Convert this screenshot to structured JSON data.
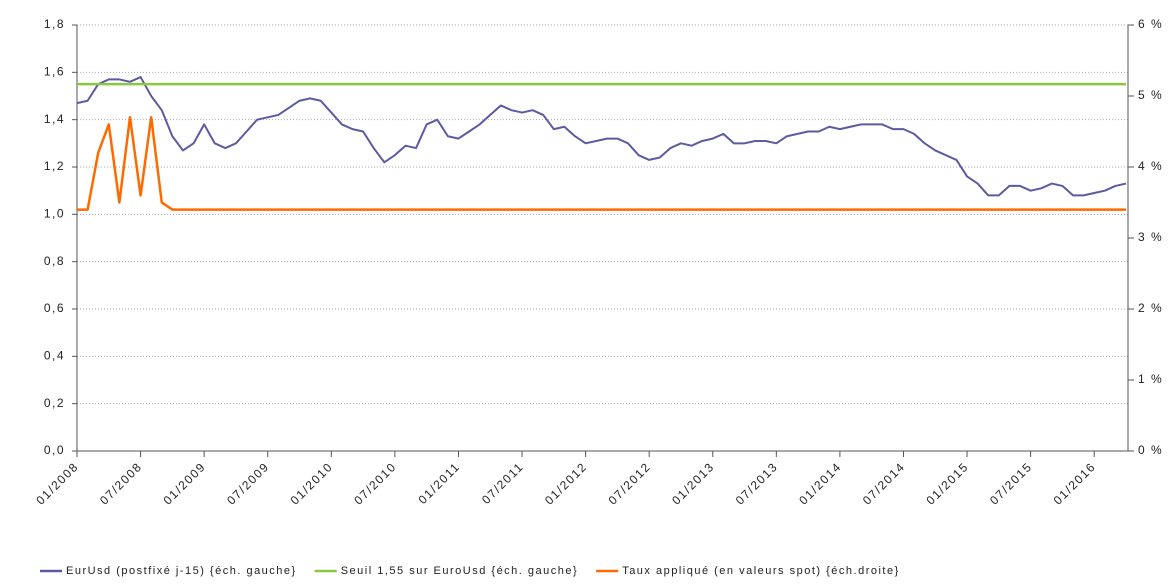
{
  "chart_data": {
    "type": "line",
    "x": [
      "01/2008",
      "02/2008",
      "03/2008",
      "04/2008",
      "05/2008",
      "06/2008",
      "07/2008",
      "08/2008",
      "09/2008",
      "10/2008",
      "11/2008",
      "12/2008",
      "01/2009",
      "02/2009",
      "03/2009",
      "04/2009",
      "05/2009",
      "06/2009",
      "07/2009",
      "08/2009",
      "09/2009",
      "10/2009",
      "11/2009",
      "12/2009",
      "01/2010",
      "02/2010",
      "03/2010",
      "04/2010",
      "05/2010",
      "06/2010",
      "07/2010",
      "08/2010",
      "09/2010",
      "10/2010",
      "11/2010",
      "12/2010",
      "01/2011",
      "02/2011",
      "03/2011",
      "04/2011",
      "05/2011",
      "06/2011",
      "07/2011",
      "08/2011",
      "09/2011",
      "10/2011",
      "11/2011",
      "12/2011",
      "01/2012",
      "02/2012",
      "03/2012",
      "04/2012",
      "05/2012",
      "06/2012",
      "07/2012",
      "08/2012",
      "09/2012",
      "10/2012",
      "11/2012",
      "12/2012",
      "01/2013",
      "02/2013",
      "03/2013",
      "04/2013",
      "05/2013",
      "06/2013",
      "07/2013",
      "08/2013",
      "09/2013",
      "10/2013",
      "11/2013",
      "12/2013",
      "01/2014",
      "02/2014",
      "03/2014",
      "04/2014",
      "05/2014",
      "06/2014",
      "07/2014",
      "08/2014",
      "09/2014",
      "10/2014",
      "11/2014",
      "12/2014",
      "01/2015",
      "02/2015",
      "03/2015",
      "04/2015",
      "05/2015",
      "06/2015",
      "07/2015",
      "08/2015",
      "09/2015",
      "10/2015",
      "11/2015",
      "12/2015",
      "01/2016",
      "02/2016",
      "03/2016",
      "04/2016"
    ],
    "xticks": [
      "01/2008",
      "07/2008",
      "01/2009",
      "07/2009",
      "01/2010",
      "07/2010",
      "01/2011",
      "07/2011",
      "01/2012",
      "07/2012",
      "01/2013",
      "07/2013",
      "01/2014",
      "07/2014",
      "01/2015",
      "07/2015",
      "01/2016"
    ],
    "series": [
      {
        "name": "EurUsd (postfixé j-15) {éch. gauche}",
        "color": "#5b5ba3",
        "values": [
          1.47,
          1.48,
          1.55,
          1.57,
          1.57,
          1.56,
          1.58,
          1.5,
          1.44,
          1.33,
          1.27,
          1.3,
          1.38,
          1.3,
          1.28,
          1.3,
          1.35,
          1.4,
          1.41,
          1.42,
          1.45,
          1.48,
          1.49,
          1.48,
          1.43,
          1.38,
          1.36,
          1.35,
          1.28,
          1.22,
          1.25,
          1.29,
          1.28,
          1.38,
          1.4,
          1.33,
          1.32,
          1.35,
          1.38,
          1.42,
          1.46,
          1.44,
          1.43,
          1.44,
          1.42,
          1.36,
          1.37,
          1.33,
          1.3,
          1.31,
          1.32,
          1.32,
          1.3,
          1.25,
          1.23,
          1.24,
          1.28,
          1.3,
          1.29,
          1.31,
          1.32,
          1.34,
          1.3,
          1.3,
          1.31,
          1.31,
          1.3,
          1.33,
          1.34,
          1.35,
          1.35,
          1.37,
          1.36,
          1.37,
          1.38,
          1.38,
          1.38,
          1.36,
          1.36,
          1.34,
          1.3,
          1.27,
          1.25,
          1.23,
          1.16,
          1.13,
          1.08,
          1.08,
          1.12,
          1.12,
          1.1,
          1.11,
          1.13,
          1.12,
          1.08,
          1.08,
          1.09,
          1.1,
          1.12,
          1.13
        ]
      },
      {
        "name": "Seuil 1,55 sur EuroUsd {éch. gauche}",
        "color": "#8cc63f",
        "values": [
          1.55,
          1.55,
          1.55,
          1.55,
          1.55,
          1.55,
          1.55,
          1.55,
          1.55,
          1.55,
          1.55,
          1.55,
          1.55,
          1.55,
          1.55,
          1.55,
          1.55,
          1.55,
          1.55,
          1.55,
          1.55,
          1.55,
          1.55,
          1.55,
          1.55,
          1.55,
          1.55,
          1.55,
          1.55,
          1.55,
          1.55,
          1.55,
          1.55,
          1.55,
          1.55,
          1.55,
          1.55,
          1.55,
          1.55,
          1.55,
          1.55,
          1.55,
          1.55,
          1.55,
          1.55,
          1.55,
          1.55,
          1.55,
          1.55,
          1.55,
          1.55,
          1.55,
          1.55,
          1.55,
          1.55,
          1.55,
          1.55,
          1.55,
          1.55,
          1.55,
          1.55,
          1.55,
          1.55,
          1.55,
          1.55,
          1.55,
          1.55,
          1.55,
          1.55,
          1.55,
          1.55,
          1.55,
          1.55,
          1.55,
          1.55,
          1.55,
          1.55,
          1.55,
          1.55,
          1.55,
          1.55,
          1.55,
          1.55,
          1.55,
          1.55,
          1.55,
          1.55,
          1.55,
          1.55,
          1.55,
          1.55,
          1.55,
          1.55,
          1.55,
          1.55,
          1.55,
          1.55,
          1.55,
          1.55,
          1.55
        ]
      },
      {
        "name": "Taux appliqué (en valeurs spot) {éch.droite}",
        "color": "#ff6a00",
        "axis": "y2",
        "values": [
          3.4,
          3.4,
          4.2,
          4.6,
          3.5,
          4.7,
          3.6,
          4.7,
          3.5,
          3.4,
          3.4,
          3.4,
          3.4,
          3.4,
          3.4,
          3.4,
          3.4,
          3.4,
          3.4,
          3.4,
          3.4,
          3.4,
          3.4,
          3.4,
          3.4,
          3.4,
          3.4,
          3.4,
          3.4,
          3.4,
          3.4,
          3.4,
          3.4,
          3.4,
          3.4,
          3.4,
          3.4,
          3.4,
          3.4,
          3.4,
          3.4,
          3.4,
          3.4,
          3.4,
          3.4,
          3.4,
          3.4,
          3.4,
          3.4,
          3.4,
          3.4,
          3.4,
          3.4,
          3.4,
          3.4,
          3.4,
          3.4,
          3.4,
          3.4,
          3.4,
          3.4,
          3.4,
          3.4,
          3.4,
          3.4,
          3.4,
          3.4,
          3.4,
          3.4,
          3.4,
          3.4,
          3.4,
          3.4,
          3.4,
          3.4,
          3.4,
          3.4,
          3.4,
          3.4,
          3.4,
          3.4,
          3.4,
          3.4,
          3.4,
          3.4,
          3.4,
          3.4,
          3.4,
          3.4,
          3.4,
          3.4,
          3.4,
          3.4,
          3.4,
          3.4,
          3.4,
          3.4,
          3.4,
          3.4,
          3.4
        ]
      }
    ],
    "ylim": [
      0,
      1.8
    ],
    "yticks": [
      {
        "value": 0,
        "label": "0,0"
      },
      {
        "value": 0.2,
        "label": "0,2"
      },
      {
        "value": 0.4,
        "label": "0,4"
      },
      {
        "value": 0.6,
        "label": "0,6"
      },
      {
        "value": 0.8,
        "label": "0,8"
      },
      {
        "value": 1,
        "label": "1,0"
      },
      {
        "value": 1.2,
        "label": "1,2"
      },
      {
        "value": 1.4,
        "label": "1,4"
      },
      {
        "value": 1.6,
        "label": "1,6"
      },
      {
        "value": 1.8,
        "label": "1,8"
      }
    ],
    "y2lim": [
      0,
      6
    ],
    "y2ticks": [
      {
        "value": 0,
        "label": "0 %"
      },
      {
        "value": 1,
        "label": "1 %"
      },
      {
        "value": 2,
        "label": "2 %"
      },
      {
        "value": 3,
        "label": "3 %"
      },
      {
        "value": 4,
        "label": "4 %"
      },
      {
        "value": 5,
        "label": "5 %"
      },
      {
        "value": 6,
        "label": "6 %"
      }
    ],
    "grid": true
  }
}
